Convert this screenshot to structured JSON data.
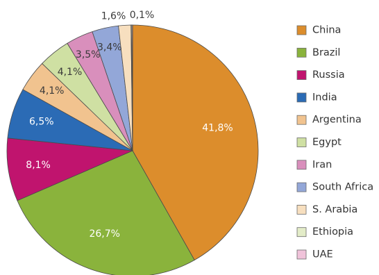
{
  "chart_data": {
    "type": "pie",
    "categories": [
      "China",
      "Brazil",
      "Russia",
      "India",
      "Argentina",
      "Egypt",
      "Iran",
      "South Africa",
      "S. Arabia",
      "Ethiopia",
      "UAE"
    ],
    "values": [
      41.8,
      26.7,
      8.1,
      6.5,
      4.1,
      4.1,
      3.5,
      3.4,
      1.6,
      0.1,
      0.1
    ],
    "labels": [
      "41,8%",
      "26,7%",
      "8,1%",
      "6,5%",
      "4,1%",
      "4,1%",
      "3,5%",
      "3,4%",
      "1,6%",
      "0,1%",
      ""
    ],
    "colors": [
      "#dc8d2c",
      "#8ab33c",
      "#c0146e",
      "#2b6bb5",
      "#f1c38f",
      "#cfe0a3",
      "#d98fbc",
      "#93a7d8",
      "#f7dfbf",
      "#e3ecc8",
      "#f0c3da"
    ],
    "legend_position": "right"
  }
}
